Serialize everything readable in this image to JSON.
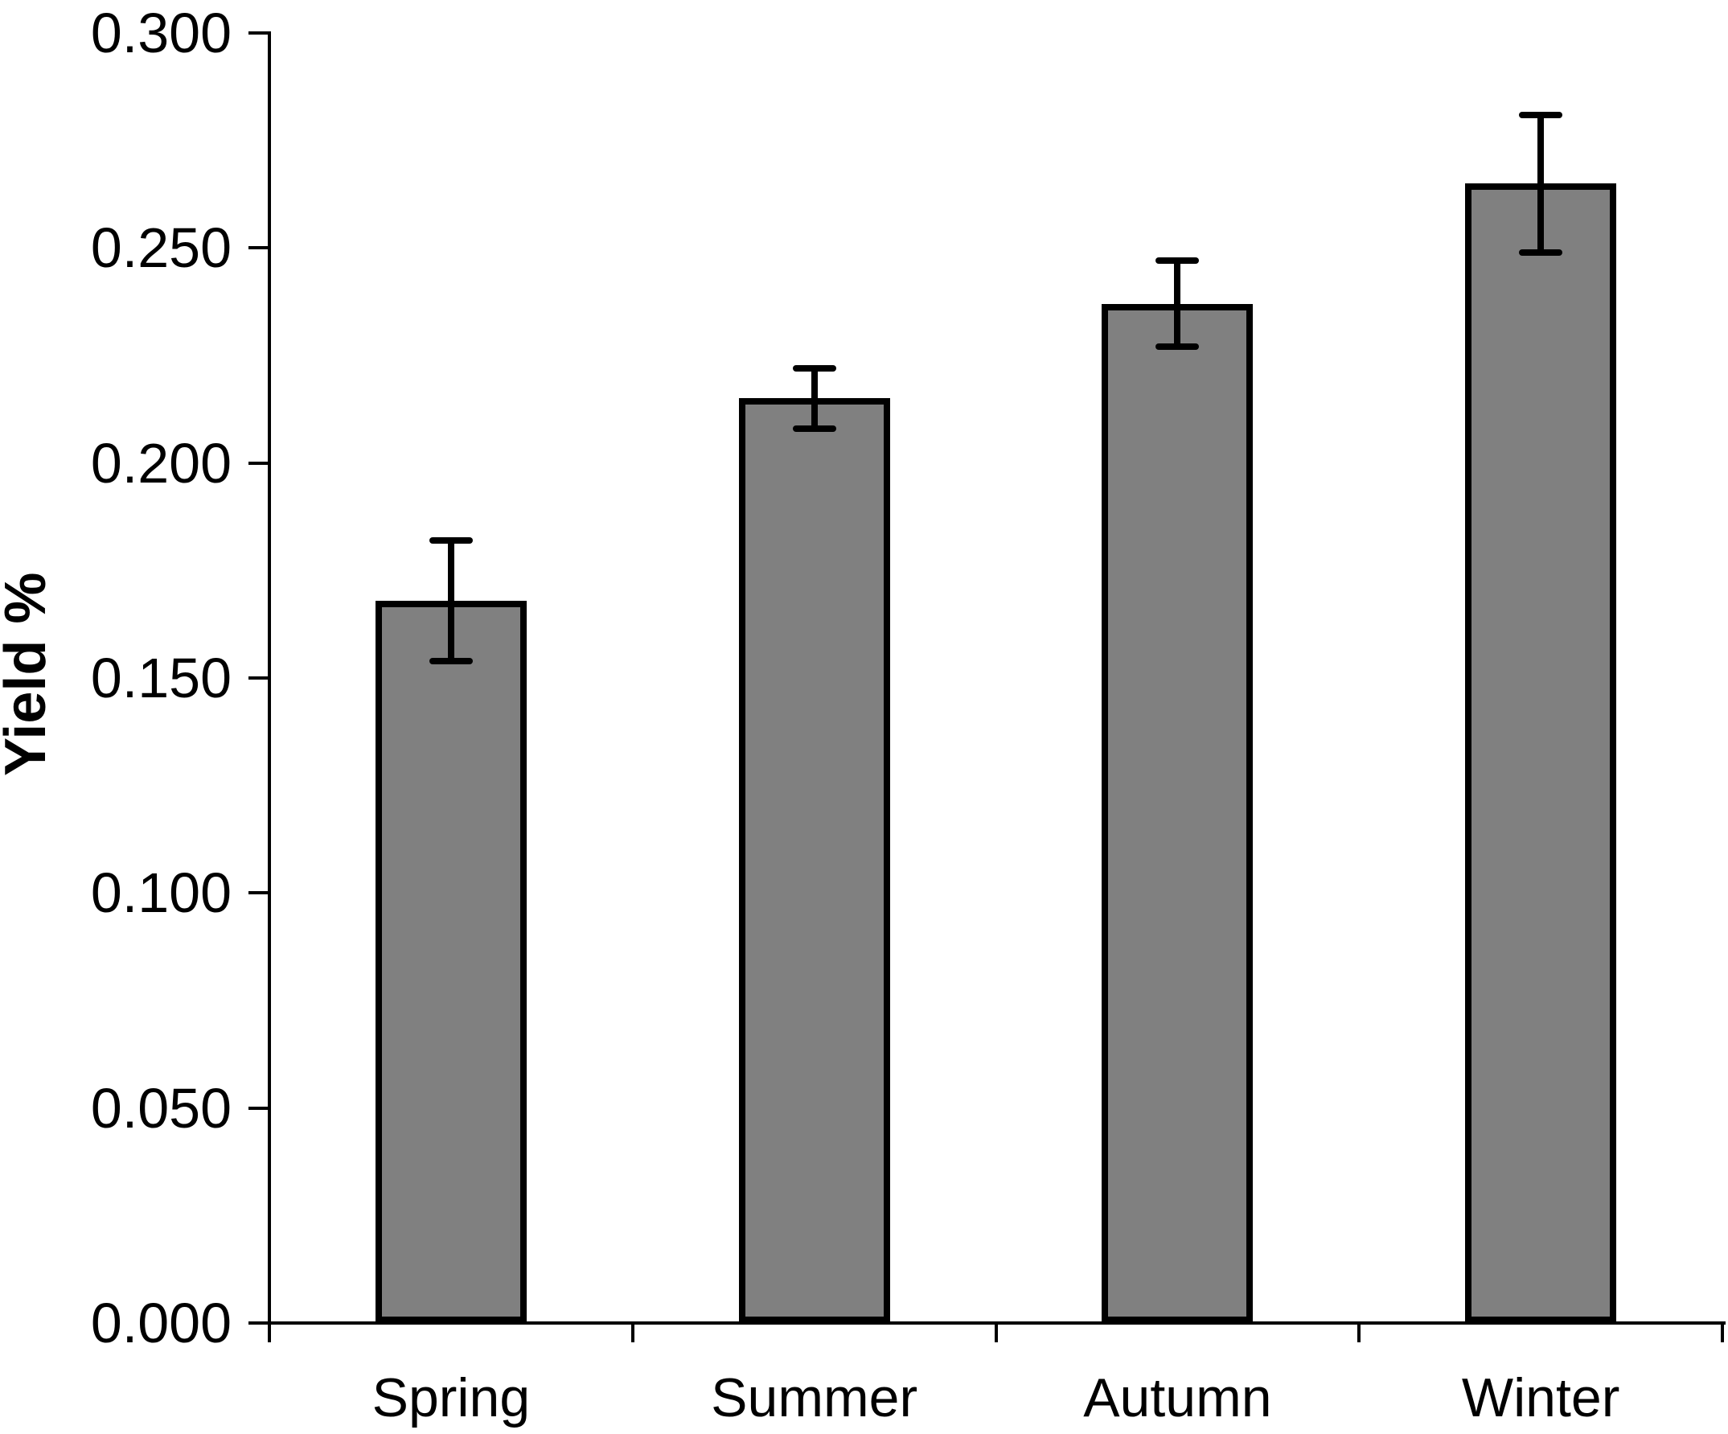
{
  "chart_data": {
    "type": "bar",
    "ylabel": "Yield %",
    "categories": [
      "Spring",
      "Summer",
      "Autumn",
      "Winter"
    ],
    "values": [
      0.168,
      0.215,
      0.237,
      0.265
    ],
    "errors_plus_minus": [
      0.014,
      0.007,
      0.01,
      0.016
    ],
    "error_cap_tops": [
      0.182,
      0.222,
      0.247,
      0.281
    ],
    "error_cap_bottoms": [
      0.154,
      0.208,
      0.227,
      0.249
    ],
    "ylim": [
      0.0,
      0.3
    ],
    "ytick_step": 0.05,
    "ytick_labels": [
      "0.000",
      "0.050",
      "0.100",
      "0.150",
      "0.200",
      "0.250",
      "0.300"
    ],
    "xlabel": "",
    "title": "",
    "legend": "none",
    "grid": "off",
    "bar_fill_color": "#808080",
    "bar_border_color": "#000000",
    "error_bar_color": "#000000"
  }
}
